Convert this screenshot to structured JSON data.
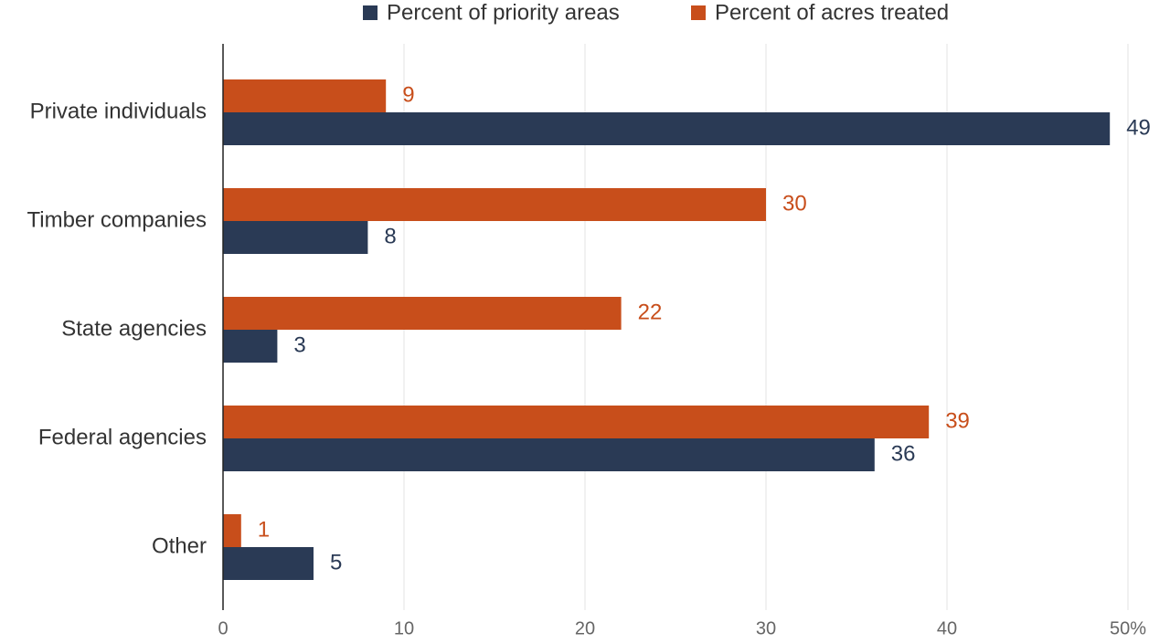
{
  "chart_data": {
    "type": "hbar",
    "categories": [
      "Private individuals",
      "Timber companies",
      "State agencies",
      "Federal agencies",
      "Other"
    ],
    "series": [
      {
        "name": "Percent of priority areas",
        "color": "#2a3a55",
        "values": [
          49,
          8,
          3,
          36,
          5
        ]
      },
      {
        "name": "Percent of acres treated",
        "color": "#c84e1b",
        "values": [
          9,
          30,
          22,
          39,
          1
        ]
      }
    ],
    "xlim": [
      0,
      50
    ],
    "xticks": [
      0,
      10,
      20,
      30,
      40,
      {
        "value": 50,
        "label": "50%"
      }
    ],
    "grid": true,
    "legend": "top"
  }
}
